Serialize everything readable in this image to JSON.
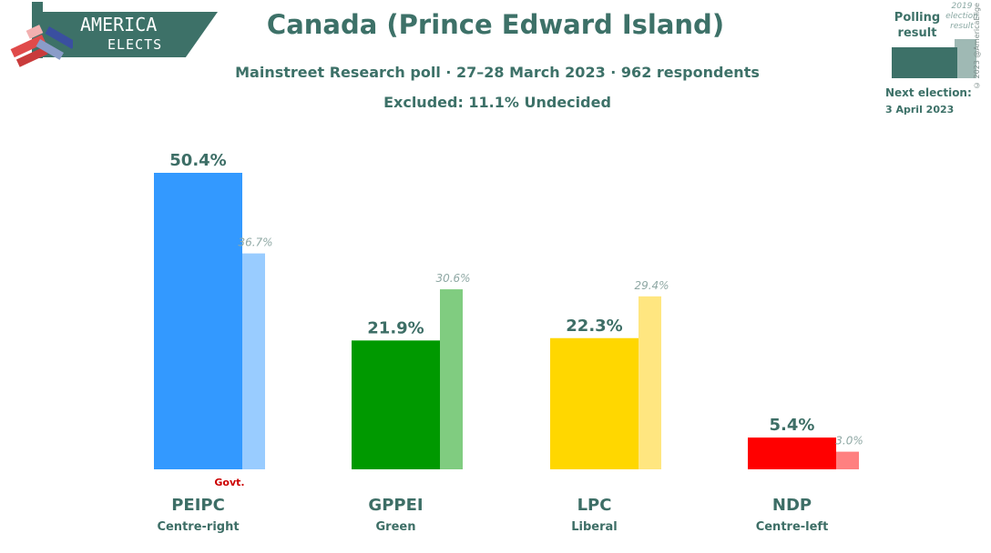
{
  "logo": {
    "line1": "AMERICA",
    "line2": "ELECTS"
  },
  "header": {
    "title": "Canada (Prince Edward Island)",
    "subtitle": "Mainstreet Research poll · 27–28 March 2023 · 962 respondents",
    "excluded": "Excluded: 11.1% Undecided"
  },
  "legend": {
    "polling_label": "Polling result",
    "election_label": "2019 election result",
    "next_election_label": "Next election:",
    "next_election_date": "3 April 2023"
  },
  "copyright": "© 2023 @AmericaElige",
  "colors": {
    "accent": "#3d7168"
  },
  "chart_data": {
    "type": "bar",
    "categories": [
      "PEIPC",
      "GPPEI",
      "LPC",
      "NDP"
    ],
    "descriptors": [
      "Centre-right",
      "Green",
      "Liberal",
      "Centre-left"
    ],
    "series": [
      {
        "name": "Polling result",
        "values": [
          50.4,
          21.9,
          22.3,
          5.4
        ],
        "labels": [
          "50.4%",
          "21.9%",
          "22.3%",
          "5.4%"
        ]
      },
      {
        "name": "2019 election result",
        "values": [
          36.7,
          30.6,
          29.4,
          3.0
        ],
        "labels": [
          "36.7%",
          "30.6%",
          "29.4%",
          "3.0%"
        ]
      }
    ],
    "colors": [
      "#3399ff",
      "#009900",
      "#ffd700",
      "#ff0000"
    ],
    "prev_colors": [
      "#99ccff",
      "#80cc80",
      "#ffe680",
      "#ff8080"
    ],
    "government_party": "PEIPC",
    "government_label": "Govt.",
    "ylim": [
      0,
      50.4
    ],
    "grid": false,
    "legend_position": "top-right"
  }
}
